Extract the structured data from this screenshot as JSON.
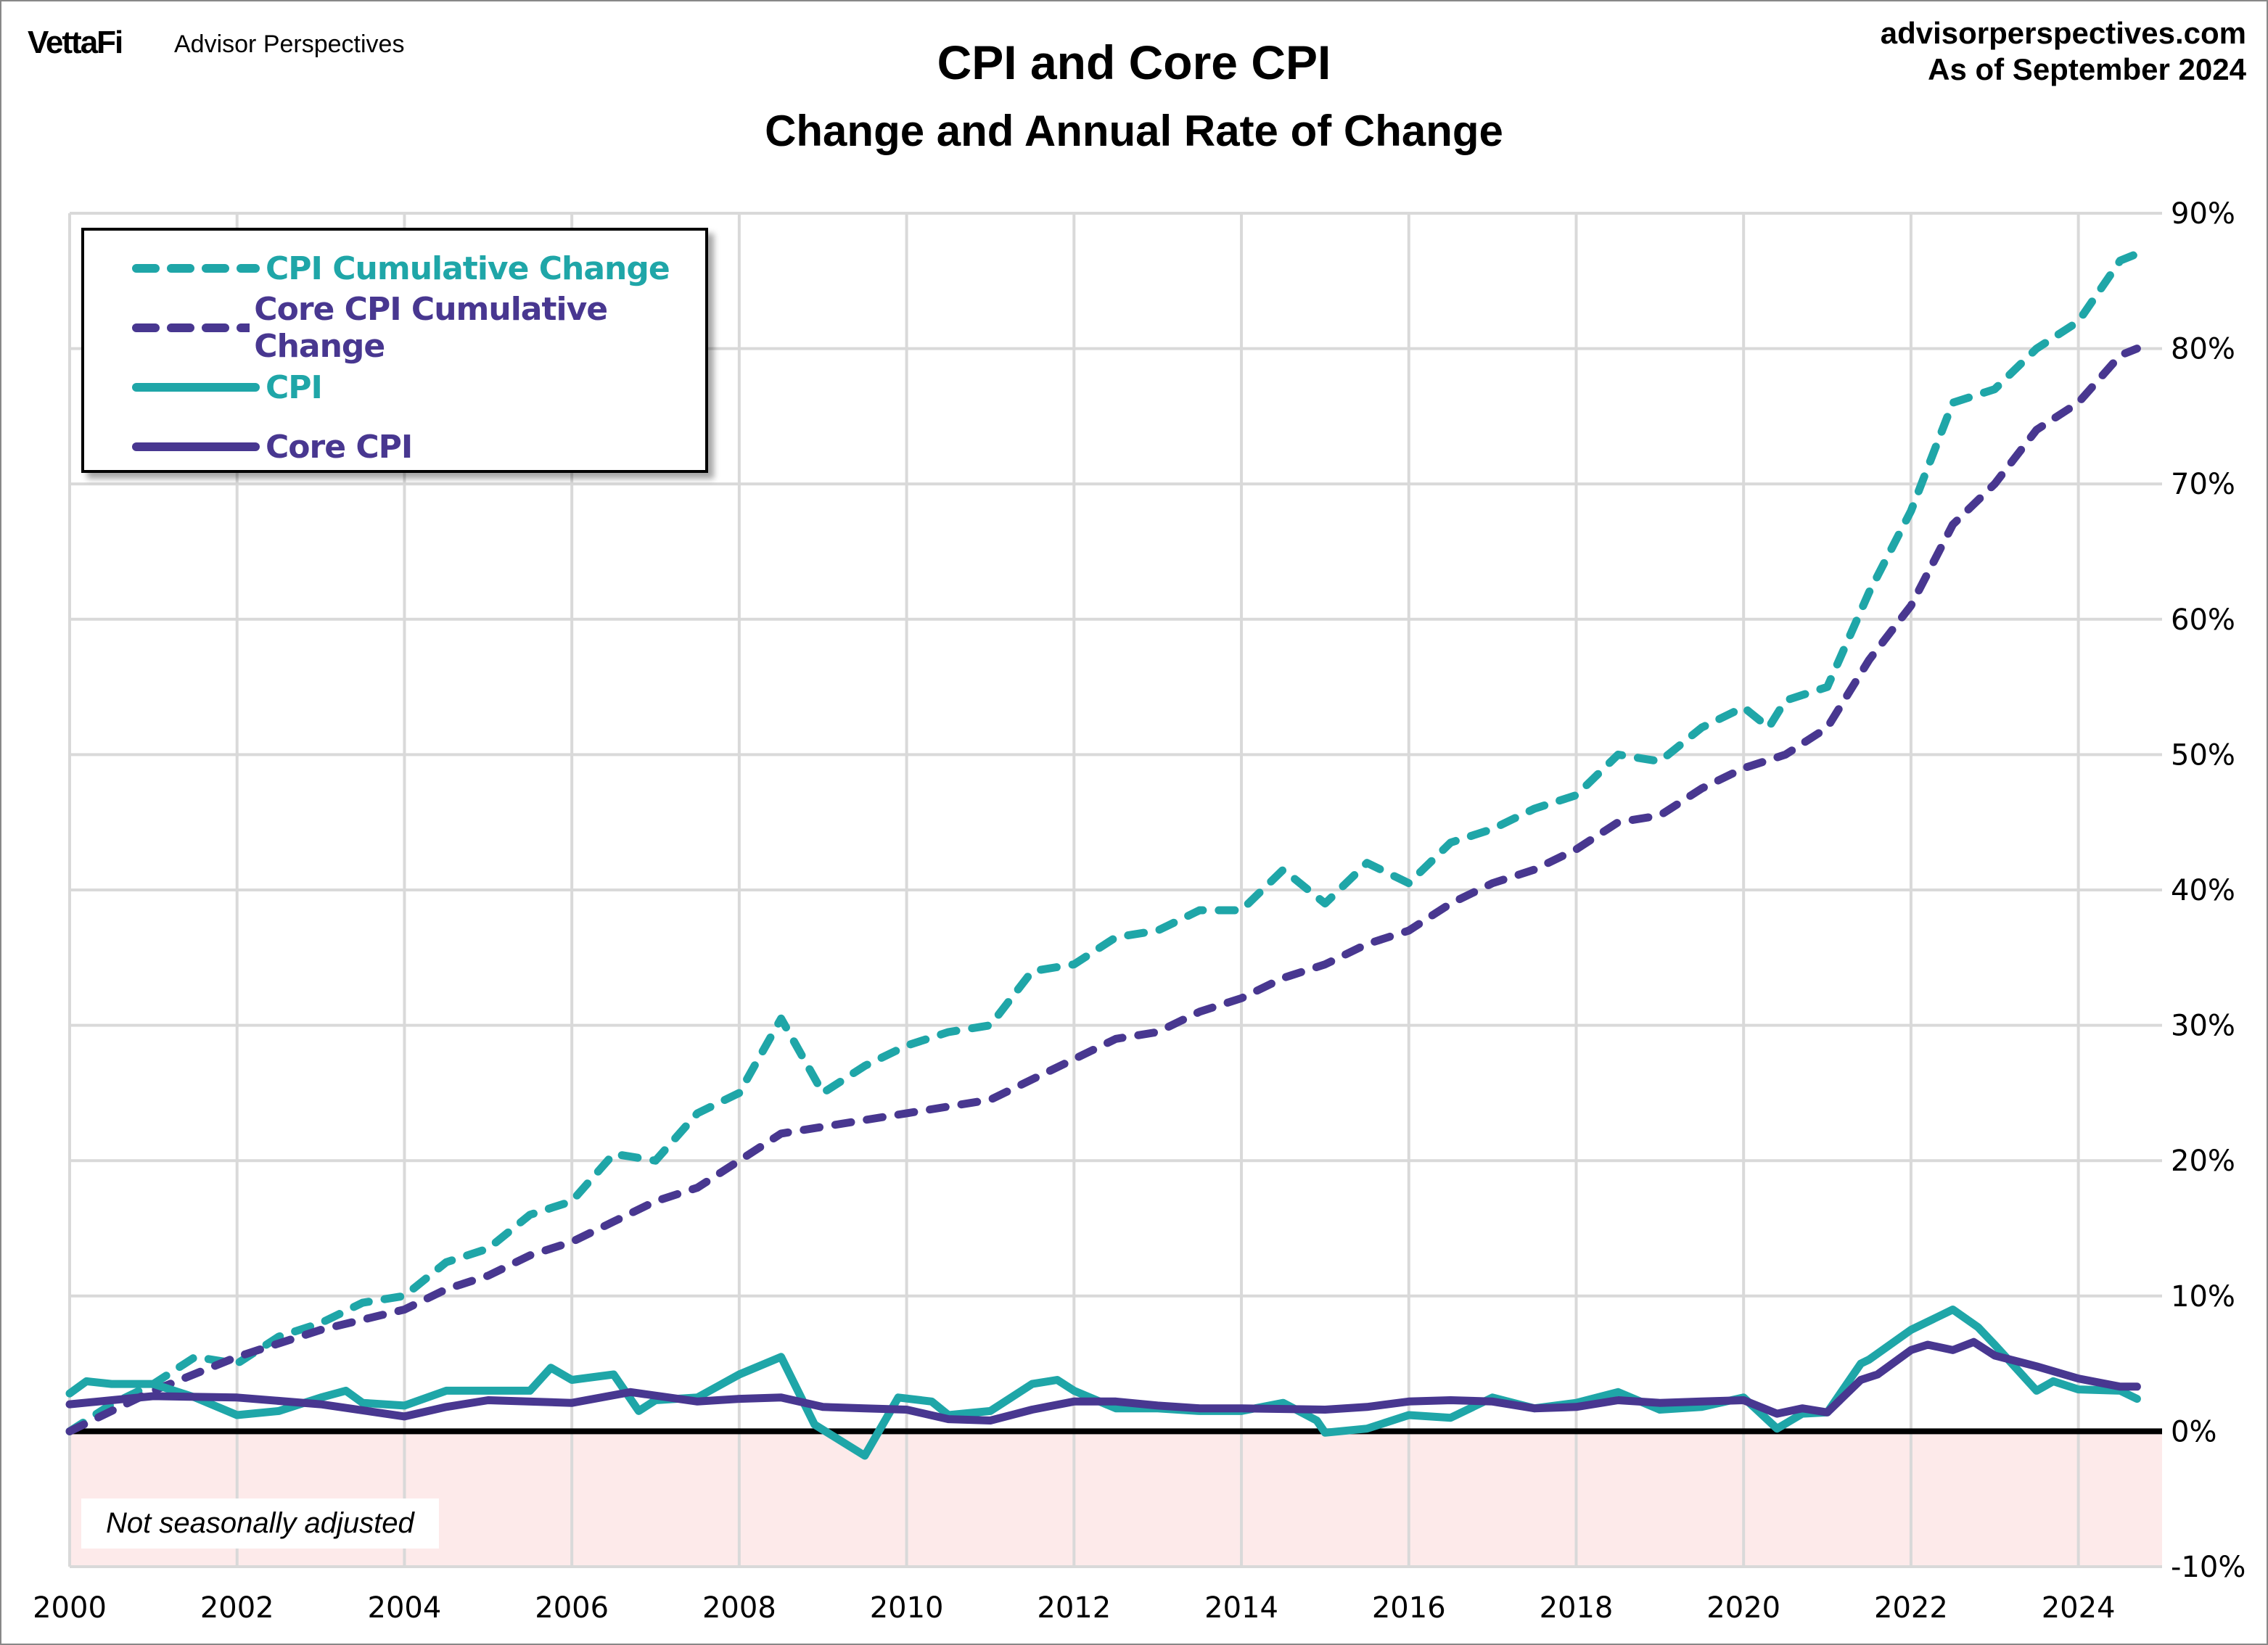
{
  "header": {
    "logo": "VettaFi",
    "brand": "Advisor Perspectives",
    "site": "advisorperspectives.com",
    "as_of": "As of September 2024"
  },
  "note": "Not seasonally adjusted",
  "colors": {
    "cpi": "#1fa6a8",
    "core": "#483790",
    "grid": "#d9d9d9",
    "negative_fill": "#fdeaea",
    "zero_line": "#000000"
  },
  "chart_data": {
    "type": "line",
    "title": "CPI and Core CPI",
    "subtitle": "Change and Annual Rate of Change",
    "xlim": [
      2000,
      2025
    ],
    "ylim": [
      -10,
      90
    ],
    "x_ticks": [
      "2000",
      "2002",
      "2004",
      "2006",
      "2008",
      "2010",
      "2012",
      "2014",
      "2016",
      "2018",
      "2020",
      "2022",
      "2024"
    ],
    "y_ticks": [
      "90%",
      "80%",
      "70%",
      "60%",
      "50%",
      "40%",
      "30%",
      "20%",
      "10%",
      "0%",
      "-10%"
    ],
    "grid": true,
    "negative_region_shaded": true,
    "legend_position": "top-left",
    "series": [
      {
        "name": "CPI Cumulative Change",
        "style": "dashed",
        "color": "#1fa6a8",
        "x": [
          2000,
          2000.5,
          2001,
          2001.5,
          2002,
          2002.5,
          2003,
          2003.5,
          2004,
          2004.5,
          2005,
          2005.5,
          2006,
          2006.5,
          2007,
          2007.5,
          2008,
          2008.5,
          2009,
          2009.5,
          2010,
          2010.5,
          2011,
          2011.5,
          2012,
          2012.5,
          2013,
          2013.5,
          2014,
          2014.5,
          2015,
          2015.5,
          2016,
          2016.5,
          2017,
          2017.5,
          2018,
          2018.5,
          2019,
          2019.5,
          2020,
          2020.3,
          2020.5,
          2021,
          2021.5,
          2022,
          2022.5,
          2023,
          2023.5,
          2024,
          2024.5,
          2024.7
        ],
        "y": [
          0,
          2,
          3.5,
          5.5,
          5,
          7,
          8,
          9.5,
          10,
          12.5,
          13.5,
          16,
          17,
          20.5,
          20,
          23.5,
          25,
          30.5,
          25,
          27,
          28.5,
          29.5,
          30,
          34,
          34.5,
          36.5,
          37,
          38.5,
          38.5,
          41.5,
          39,
          42,
          40.5,
          43.5,
          44.5,
          46,
          47,
          50,
          49.5,
          52,
          53.5,
          52,
          54,
          55,
          62,
          68,
          76,
          77,
          80,
          82,
          86.5,
          87
        ]
      },
      {
        "name": "Core CPI Cumulative Change",
        "style": "dashed",
        "color": "#483790",
        "x": [
          2000,
          2000.5,
          2001,
          2002,
          2003,
          2004,
          2004.5,
          2005,
          2005.5,
          2006,
          2006.5,
          2007,
          2007.5,
          2008,
          2008.5,
          2009,
          2009.5,
          2010,
          2010.5,
          2011,
          2011.5,
          2012,
          2012.5,
          2013,
          2013.5,
          2014,
          2014.5,
          2015,
          2015.5,
          2016,
          2016.5,
          2017,
          2017.5,
          2018,
          2018.5,
          2019,
          2019.5,
          2020,
          2020.5,
          2021,
          2021.5,
          2022,
          2022.5,
          2023,
          2023.5,
          2024,
          2024.5,
          2024.7
        ],
        "y": [
          0,
          1.5,
          3,
          5.5,
          7.5,
          9,
          10.5,
          11.5,
          13,
          14,
          15.5,
          17,
          18,
          20,
          22,
          22.5,
          23,
          23.5,
          24,
          24.5,
          26,
          27.5,
          29,
          29.5,
          31,
          32,
          33.5,
          34.5,
          36,
          37,
          39,
          40.5,
          41.5,
          43,
          45,
          45.5,
          47.5,
          49,
          50,
          52,
          57,
          61,
          67,
          70,
          74,
          76,
          79.5,
          80
        ]
      },
      {
        "name": "CPI",
        "style": "solid",
        "color": "#1fa6a8",
        "x": [
          2000,
          2000.2,
          2000.5,
          2001,
          2001.5,
          2002,
          2002.5,
          2003,
          2003.3,
          2003.5,
          2004,
          2004.5,
          2005,
          2005.5,
          2005.75,
          2006,
          2006.5,
          2006.8,
          2007,
          2007.5,
          2008,
          2008.5,
          2008.9,
          2009.5,
          2009.9,
          2010.3,
          2010.5,
          2011,
          2011.5,
          2011.8,
          2012,
          2012.5,
          2013,
          2013.5,
          2014,
          2014.5,
          2014.9,
          2015,
          2015.5,
          2016,
          2016.5,
          2017,
          2017.5,
          2018,
          2018.5,
          2019,
          2019.5,
          2020,
          2020.4,
          2020.7,
          2021,
          2021.4,
          2021.5,
          2022,
          2022.5,
          2022.8,
          2023,
          2023.5,
          2023.7,
          2024,
          2024.5,
          2024.7
        ],
        "y": [
          2.8,
          3.7,
          3.5,
          3.5,
          2.5,
          1.2,
          1.5,
          2.5,
          3,
          2.1,
          1.9,
          3,
          3,
          3,
          4.7,
          3.8,
          4.2,
          1.5,
          2.3,
          2.5,
          4.2,
          5.5,
          0.5,
          -1.8,
          2.5,
          2.2,
          1.2,
          1.5,
          3.5,
          3.8,
          3,
          1.7,
          1.7,
          1.5,
          1.5,
          2.1,
          0.8,
          -0.1,
          0.2,
          1.2,
          1,
          2.5,
          1.7,
          2.1,
          2.9,
          1.6,
          1.8,
          2.5,
          0.2,
          1.3,
          1.4,
          5,
          5.3,
          7.5,
          9,
          7.7,
          6.4,
          3,
          3.7,
          3.1,
          3,
          2.4
        ]
      },
      {
        "name": "Core CPI",
        "style": "solid",
        "color": "#483790",
        "x": [
          2000,
          2001,
          2002,
          2003,
          2004,
          2004.5,
          2005,
          2006,
          2006.7,
          2007.5,
          2008,
          2008.5,
          2009,
          2009.5,
          2010,
          2010.5,
          2011,
          2011.5,
          2012,
          2012.5,
          2013,
          2013.5,
          2014,
          2015,
          2015.5,
          2016,
          2016.5,
          2017,
          2017.5,
          2018,
          2018.5,
          2019,
          2019.5,
          2020,
          2020.4,
          2020.7,
          2021,
          2021.4,
          2021.6,
          2022,
          2022.2,
          2022.5,
          2022.75,
          2023,
          2023.5,
          2024,
          2024.5,
          2024.7
        ],
        "y": [
          2,
          2.6,
          2.5,
          2,
          1.1,
          1.8,
          2.3,
          2.1,
          2.9,
          2.2,
          2.4,
          2.5,
          1.8,
          1.7,
          1.6,
          0.9,
          0.8,
          1.6,
          2.2,
          2.2,
          1.9,
          1.7,
          1.7,
          1.6,
          1.8,
          2.2,
          2.3,
          2.2,
          1.7,
          1.8,
          2.3,
          2.1,
          2.2,
          2.3,
          1.3,
          1.7,
          1.4,
          3.8,
          4.2,
          6,
          6.4,
          6,
          6.6,
          5.6,
          4.8,
          3.9,
          3.3,
          3.3
        ]
      }
    ]
  }
}
